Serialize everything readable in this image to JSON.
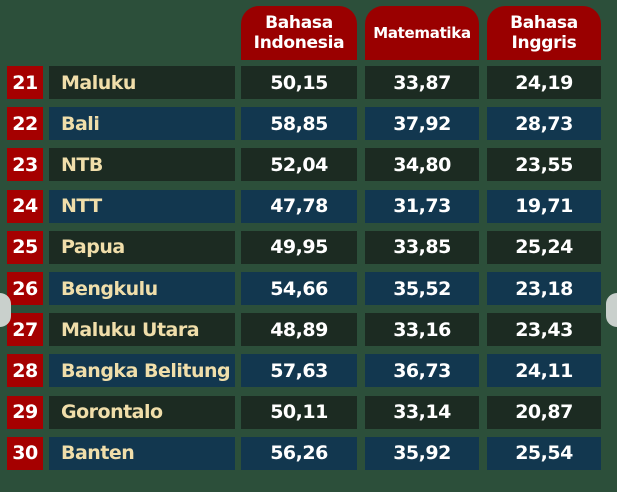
{
  "headers": [
    "Bahasa Indonesia",
    "Matematika",
    "Bahasa Inggris"
  ],
  "colors": {
    "background": "#2c4f3a",
    "header": "#9a0000",
    "rank": "#a50000",
    "row_dark": "#1c2b22",
    "row_blue": "#12374f",
    "name_text": "#f0deaa"
  },
  "rows": [
    {
      "rank": "21",
      "province": "Maluku",
      "bahasa_indonesia": "50,15",
      "matematika": "33,87",
      "bahasa_inggris": "24,19"
    },
    {
      "rank": "22",
      "province": "Bali",
      "bahasa_indonesia": "58,85",
      "matematika": "37,92",
      "bahasa_inggris": "28,73"
    },
    {
      "rank": "23",
      "province": "NTB",
      "bahasa_indonesia": "52,04",
      "matematika": "34,80",
      "bahasa_inggris": "23,55"
    },
    {
      "rank": "24",
      "province": "NTT",
      "bahasa_indonesia": "47,78",
      "matematika": "31,73",
      "bahasa_inggris": "19,71"
    },
    {
      "rank": "25",
      "province": "Papua",
      "bahasa_indonesia": "49,95",
      "matematika": "33,85",
      "bahasa_inggris": "25,24"
    },
    {
      "rank": "26",
      "province": "Bengkulu",
      "bahasa_indonesia": "54,66",
      "matematika": "35,52",
      "bahasa_inggris": "23,18"
    },
    {
      "rank": "27",
      "province": "Maluku Utara",
      "bahasa_indonesia": "48,89",
      "matematika": "33,16",
      "bahasa_inggris": "23,43"
    },
    {
      "rank": "28",
      "province": "Bangka Belitung",
      "bahasa_indonesia": "57,63",
      "matematika": "36,73",
      "bahasa_inggris": "24,11"
    },
    {
      "rank": "29",
      "province": "Gorontalo",
      "bahasa_indonesia": "50,11",
      "matematika": "33,14",
      "bahasa_inggris": "20,87"
    },
    {
      "rank": "30",
      "province": "Banten",
      "bahasa_indonesia": "56,26",
      "matematika": "35,92",
      "bahasa_inggris": "25,54"
    }
  ]
}
